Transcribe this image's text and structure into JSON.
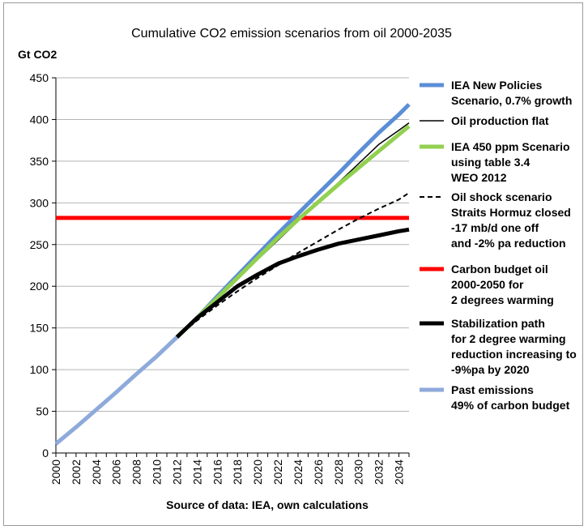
{
  "chart_data": {
    "type": "line",
    "title": "Cumulative CO2 emission scenarios from oil 2000-2035",
    "ylabel": "Gt CO2",
    "xlabel": "Source of data: IEA, own calculations",
    "ylim": [
      0,
      450
    ],
    "yticks": [
      0,
      50,
      100,
      150,
      200,
      250,
      300,
      350,
      400,
      450
    ],
    "xlim": [
      2000,
      2035
    ],
    "xticks": [
      2000,
      2002,
      2004,
      2006,
      2008,
      2010,
      2012,
      2014,
      2016,
      2018,
      2020,
      2022,
      2024,
      2026,
      2028,
      2030,
      2032,
      2034
    ],
    "grid": "horizontal",
    "legend_position": "right",
    "series": [
      {
        "name": "IEA New Policies Scenario, 0.7% growth",
        "color": "#5b8ed6",
        "width": 5,
        "dash": "",
        "x": [
          2012,
          2014,
          2016,
          2018,
          2020,
          2022,
          2024,
          2026,
          2028,
          2030,
          2032,
          2034,
          2035
        ],
        "y": [
          139,
          162,
          188,
          213,
          238,
          263,
          287,
          311,
          335,
          360,
          384,
          406,
          418
        ]
      },
      {
        "name": "Oil production flat",
        "color": "#000000",
        "width": 1.5,
        "dash": "",
        "x": [
          2012,
          2014,
          2016,
          2018,
          2020,
          2022,
          2024,
          2026,
          2028,
          2030,
          2032,
          2034,
          2035
        ],
        "y": [
          139,
          162,
          186,
          209,
          232,
          255,
          278,
          301,
          324,
          347,
          370,
          387,
          396
        ]
      },
      {
        "name": "IEA 450 ppm Scenario using table 3.4 WEO 2012",
        "color": "#92d050",
        "width": 5,
        "dash": "",
        "x": [
          2012,
          2014,
          2016,
          2018,
          2020,
          2022,
          2024,
          2026,
          2028,
          2030,
          2032,
          2034,
          2035
        ],
        "y": [
          139,
          162,
          186,
          210,
          234,
          258,
          280,
          301,
          322,
          342,
          362,
          382,
          392
        ]
      },
      {
        "name": "Oil shock scenario Straits Hormuz closed -17 mb/d  one off and -2% pa reduction",
        "color": "#000000",
        "width": 2,
        "dash": "6,4",
        "x": [
          2012,
          2014,
          2016,
          2018,
          2020,
          2022,
          2024,
          2026,
          2028,
          2030,
          2032,
          2034,
          2035
        ],
        "y": [
          139,
          159,
          177,
          194,
          210,
          225,
          240,
          254,
          268,
          281,
          293,
          304,
          312
        ]
      },
      {
        "name": "Carbon budget oil 2000-2050 for 2 degrees warming",
        "color": "#ff0000",
        "width": 5,
        "dash": "",
        "x": [
          2000,
          2035
        ],
        "y": [
          282,
          282
        ]
      },
      {
        "name": "Stabilization path for 2 degree warming reduction increasing to -9%pa by 2020",
        "color": "#000000",
        "width": 5,
        "dash": "",
        "x": [
          2012,
          2014,
          2016,
          2018,
          2020,
          2022,
          2024,
          2026,
          2028,
          2030,
          2032,
          2034,
          2035
        ],
        "y": [
          139,
          162,
          181,
          200,
          214,
          227,
          236,
          244,
          251,
          256,
          261,
          266,
          268
        ]
      },
      {
        "name": "Past emissions 49% of carbon budget",
        "color": "#8eaadb",
        "width": 5,
        "dash": "",
        "x": [
          2000,
          2002,
          2004,
          2006,
          2008,
          2010,
          2012
        ],
        "y": [
          11,
          31,
          52,
          73,
          95,
          116,
          139
        ]
      }
    ],
    "legend": [
      {
        "lines": [
          "IEA New Policies",
          "Scenario, 0.7% growth"
        ]
      },
      {
        "lines": [
          "Oil production flat"
        ]
      },
      {
        "lines": [
          "IEA 450 ppm Scenario",
          "using table 3.4",
          "WEO 2012"
        ]
      },
      {
        "lines": [
          "Oil shock scenario",
          "Straits Hormuz closed",
          "-17 mb/d  one off",
          "and -2% pa reduction"
        ]
      },
      {
        "lines": [
          "Carbon budget oil",
          "2000-2050 for",
          "2 degrees warming"
        ]
      },
      {
        "lines": [
          "Stabilization path",
          "for 2 degree warming",
          "reduction increasing to",
          "-9%pa by 2020"
        ]
      },
      {
        "lines": [
          "Past emissions",
          "49% of carbon budget"
        ]
      }
    ]
  }
}
